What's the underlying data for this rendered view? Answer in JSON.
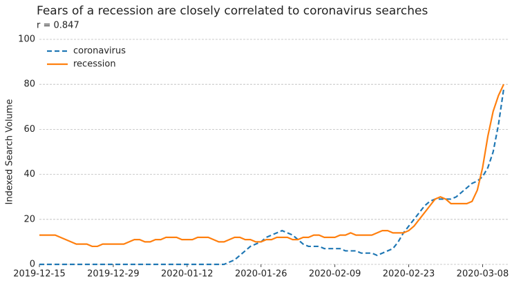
{
  "chart_data": {
    "type": "line",
    "title": "Fears of a recession are closely correlated to coronavirus searches",
    "subtitle": "r = 0.847",
    "y_label": "Indexed Search Volume",
    "x": [
      "2019-12-15",
      "2019-12-16",
      "2019-12-17",
      "2019-12-18",
      "2019-12-19",
      "2019-12-20",
      "2019-12-21",
      "2019-12-22",
      "2019-12-23",
      "2019-12-24",
      "2019-12-25",
      "2019-12-26",
      "2019-12-27",
      "2019-12-28",
      "2019-12-29",
      "2019-12-30",
      "2019-12-31",
      "2020-01-01",
      "2020-01-02",
      "2020-01-03",
      "2020-01-04",
      "2020-01-05",
      "2020-01-06",
      "2020-01-07",
      "2020-01-08",
      "2020-01-09",
      "2020-01-10",
      "2020-01-11",
      "2020-01-12",
      "2020-01-13",
      "2020-01-14",
      "2020-01-15",
      "2020-01-16",
      "2020-01-17",
      "2020-01-18",
      "2020-01-19",
      "2020-01-20",
      "2020-01-21",
      "2020-01-22",
      "2020-01-23",
      "2020-01-24",
      "2020-01-25",
      "2020-01-26",
      "2020-01-27",
      "2020-01-28",
      "2020-01-29",
      "2020-01-30",
      "2020-01-31",
      "2020-02-01",
      "2020-02-02",
      "2020-02-03",
      "2020-02-04",
      "2020-02-05",
      "2020-02-06",
      "2020-02-07",
      "2020-02-08",
      "2020-02-09",
      "2020-02-10",
      "2020-02-11",
      "2020-02-12",
      "2020-02-13",
      "2020-02-14",
      "2020-02-15",
      "2020-02-16",
      "2020-02-17",
      "2020-02-18",
      "2020-02-19",
      "2020-02-20",
      "2020-02-21",
      "2020-02-22",
      "2020-02-23",
      "2020-02-24",
      "2020-02-25",
      "2020-02-26",
      "2020-02-27",
      "2020-02-28",
      "2020-02-29",
      "2020-03-01",
      "2020-03-02",
      "2020-03-03",
      "2020-03-04",
      "2020-03-05",
      "2020-03-06",
      "2020-03-07",
      "2020-03-08",
      "2020-03-09",
      "2020-03-10",
      "2020-03-11",
      "2020-03-12"
    ],
    "series": [
      {
        "name": "coronavirus",
        "color": "#1f77b4",
        "dash": true,
        "values": [
          0,
          0,
          0,
          0,
          0,
          0,
          0,
          0,
          0,
          0,
          0,
          0,
          0,
          0,
          0,
          0,
          0,
          0,
          0,
          0,
          0,
          0,
          0,
          0,
          0,
          0,
          0,
          0,
          0,
          0,
          0,
          0,
          0,
          0,
          0,
          0,
          1,
          2,
          4,
          6,
          8,
          9,
          10,
          12,
          13,
          14,
          15,
          14,
          13,
          11,
          9,
          8,
          8,
          8,
          7,
          7,
          7,
          7,
          6,
          6,
          6,
          5,
          5,
          5,
          4,
          5,
          6,
          7,
          10,
          14,
          17,
          20,
          23,
          26,
          28,
          29,
          29,
          29,
          29,
          30,
          32,
          34,
          36,
          37,
          39,
          43,
          50,
          62,
          78
        ]
      },
      {
        "name": "recession",
        "color": "#ff7f0e",
        "dash": false,
        "values": [
          13,
          13,
          13,
          13,
          12,
          11,
          10,
          9,
          9,
          9,
          8,
          8,
          9,
          9,
          9,
          9,
          9,
          10,
          11,
          11,
          10,
          10,
          11,
          11,
          12,
          12,
          12,
          11,
          11,
          11,
          12,
          12,
          12,
          11,
          10,
          10,
          11,
          12,
          12,
          11,
          11,
          10,
          10,
          11,
          11,
          12,
          12,
          12,
          11,
          11,
          12,
          12,
          13,
          13,
          12,
          12,
          12,
          13,
          13,
          14,
          13,
          13,
          13,
          13,
          14,
          15,
          15,
          14,
          14,
          14,
          15,
          17,
          20,
          23,
          26,
          29,
          30,
          29,
          27,
          27,
          27,
          27,
          28,
          33,
          43,
          57,
          68,
          75,
          80
        ]
      }
    ],
    "xlim": [
      "2019-12-15",
      "2020-03-12"
    ],
    "xticks": [
      "2019-12-15",
      "2019-12-29",
      "2020-01-12",
      "2020-01-26",
      "2020-02-09",
      "2020-02-23",
      "2020-03-08"
    ],
    "ylim": [
      0,
      100
    ],
    "yticks": [
      0,
      20,
      40,
      60,
      80,
      100
    ],
    "grid": true,
    "legend": "upper left"
  }
}
